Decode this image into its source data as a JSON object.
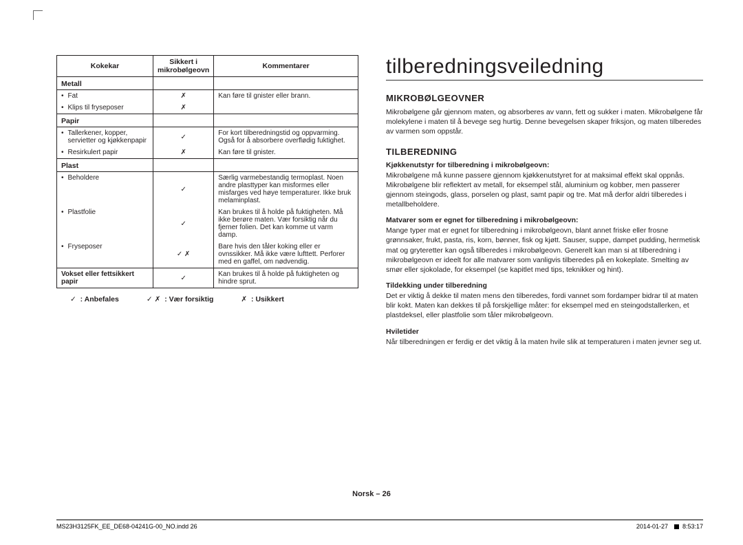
{
  "left": {
    "headers": [
      "Kokekar",
      "Sikkert i mikrobølgeovn",
      "Kommentarer"
    ],
    "categories": [
      {
        "name": "Metall",
        "rows": [
          {
            "item": "Fat",
            "safe": "✗",
            "comment": "Kan føre til gnister eller brann."
          },
          {
            "item": "Klips til fryseposer",
            "safe": "✗",
            "comment": ""
          }
        ]
      },
      {
        "name": "Papir",
        "rows": [
          {
            "item": "Tallerkener, kopper, servietter og kjøkkenpapir",
            "safe": "✓",
            "comment": "For kort tilberedningstid og oppvarming. Også for å absorbere overflødig fuktighet."
          },
          {
            "item": "Resirkulert papir",
            "safe": "✗",
            "comment": "Kan føre til gnister."
          }
        ]
      },
      {
        "name": "Plast",
        "rows": [
          {
            "item": "Beholdere",
            "safe": "✓",
            "comment": "Særlig varmebestandig termoplast. Noen andre plasttyper kan misformes eller misfarges ved høye temperaturer. Ikke bruk melaminplast."
          },
          {
            "item": "Plastfolie",
            "safe": "✓",
            "comment": "Kan brukes til å holde på fuktigheten. Må ikke berøre maten. Vær forsiktig når du fjerner folien. Det kan komme ut varm damp."
          },
          {
            "item": "Fryseposer",
            "safe": "✓ ✗",
            "comment": "Bare hvis den tåler koking eller er ovnssikker. Må ikke være lufttett. Perforer med en gaffel, om nødvendig."
          }
        ]
      },
      {
        "name_row": {
          "item": "Vokset eller fettsikkert papir",
          "safe": "✓",
          "comment": "Kan brukes til å holde på fuktigheten og hindre sprut."
        }
      }
    ],
    "legend": [
      {
        "sym": "✓",
        "label": ": Anbefales"
      },
      {
        "sym": "✓ ✗",
        "label": ": Vær forsiktig"
      },
      {
        "sym": "✗",
        "label": ": Usikkert"
      }
    ]
  },
  "right": {
    "title": "tilberedningsveiledning",
    "s1_h": "MIKROBØLGEOVNER",
    "s1_p": "Mikrobølgene går gjennom maten, og absorberes av vann, fett og sukker i maten. Mikrobølgene får molekylene i maten til å bevege seg hurtig. Denne bevegelsen skaper friksjon, og maten tilberedes av varmen som oppstår.",
    "s2_h": "TILBEREDNING",
    "s2a_b": "Kjøkkenutstyr for tilberedning i mikrobølgeovn:",
    "s2a_p": "Mikrobølgene må kunne passere gjennom kjøkkenutstyret for at maksimal effekt skal oppnås. Mikrobølgene blir reflektert av metall, for eksempel stål, aluminium og kobber, men passerer gjennom steingods, glass, porselen og plast, samt papir og tre. Mat må derfor aldri tilberedes i metallbeholdere.",
    "s2b_b": "Matvarer som er egnet for tilberedning i mikrobølgeovn:",
    "s2b_p": "Mange typer mat er egnet for tilberedning i mikrobølgeovn, blant annet friske eller frosne grønnsaker, frukt, pasta, ris, korn, bønner, fisk og kjøtt. Sauser, suppe, dampet pudding, hermetisk mat og gryteretter kan også tilberedes i mikrobølgeovn. Generelt kan man si at tilberedning i mikrobølgeovn er ideelt for alle matvarer som vanligvis tilberedes på en kokeplate. Smelting av smør eller sjokolade, for eksempel (se kapitlet med tips, teknikker og hint).",
    "s2c_b": "Tildekking under tilberedning",
    "s2c_p": "Det er viktig å dekke til maten mens den tilberedes, fordi vannet som fordamper bidrar til at maten blir kokt. Maten kan dekkes til på forskjellige måter: for eksempel med en steingodstallerken, et plastdeksel, eller plastfolie som tåler mikrobølgeovn.",
    "s2d_b": "Hviletider",
    "s2d_p": "Når tilberedningen er ferdig er det viktig å la maten hvile slik at temperaturen i maten jevner seg ut."
  },
  "footer": "Norsk – 26",
  "print_left": "MS23H3125FK_EE_DE68-04241G-00_NO.indd   26",
  "print_right": "2014-01-27    8:53:17"
}
